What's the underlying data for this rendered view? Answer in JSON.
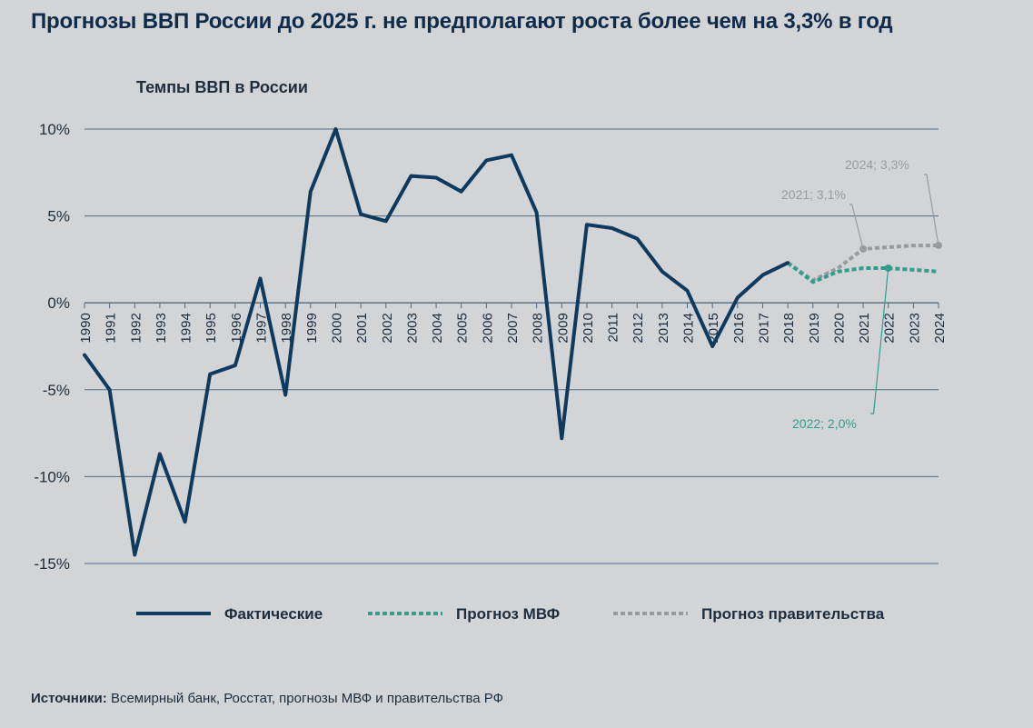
{
  "title": "Прогнозы ВВП России до 2025 г. не предполагают роста более чем на 3,3% в год",
  "source_label": "Источники:",
  "source_text": "Всемирный банк, Росстат, прогнозы МВФ и правительства РФ",
  "colors": {
    "actual": "#0e3a5f",
    "imf": "#2f9e8f",
    "gov": "#9a9b9d",
    "grid": "#4f6a86"
  },
  "chart_data": {
    "type": "line",
    "title": "Темпы ВВП в России",
    "xlabel": "",
    "ylabel": "",
    "ylim": [
      -15,
      10
    ],
    "yticks": [
      10,
      5,
      0,
      -5,
      -10,
      -15
    ],
    "ytick_labels": [
      "10%",
      "5%",
      "0%",
      "-5%",
      "-10%",
      "-15%"
    ],
    "x": [
      1990,
      1991,
      1992,
      1993,
      1994,
      1995,
      1996,
      1997,
      1998,
      1999,
      2000,
      2001,
      2002,
      2003,
      2004,
      2005,
      2006,
      2007,
      2008,
      2009,
      2010,
      2011,
      2012,
      2013,
      2014,
      2015,
      2016,
      2017,
      2018,
      2019,
      2020,
      2021,
      2022,
      2023,
      2024
    ],
    "series": [
      {
        "name": "Фактические",
        "key": "actual",
        "x": [
          1990,
          1991,
          1992,
          1993,
          1994,
          1995,
          1996,
          1997,
          1998,
          1999,
          2000,
          2001,
          2002,
          2003,
          2004,
          2005,
          2006,
          2007,
          2008,
          2009,
          2010,
          2011,
          2012,
          2013,
          2014,
          2015,
          2016,
          2017,
          2018
        ],
        "values": [
          -3.0,
          -5.0,
          -14.5,
          -8.7,
          -12.6,
          -4.1,
          -3.6,
          1.4,
          -5.3,
          6.4,
          10.0,
          5.1,
          4.7,
          7.3,
          7.2,
          6.4,
          8.2,
          8.5,
          5.2,
          -7.8,
          4.5,
          4.3,
          3.7,
          1.8,
          0.7,
          -2.5,
          0.3,
          1.6,
          2.3
        ]
      },
      {
        "name": "Прогноз МВФ",
        "key": "imf",
        "x": [
          2018,
          2019,
          2020,
          2021,
          2022,
          2023,
          2024
        ],
        "values": [
          2.3,
          1.2,
          1.8,
          2.0,
          2.0,
          1.9,
          1.8
        ]
      },
      {
        "name": "Прогноз правительства",
        "key": "gov",
        "x": [
          2018,
          2019,
          2020,
          2021,
          2022,
          2023,
          2024
        ],
        "values": [
          2.3,
          1.3,
          2.0,
          3.1,
          3.2,
          3.3,
          3.3
        ]
      }
    ],
    "annotations": [
      {
        "text": "2021; 3,1%",
        "series": "gov",
        "x": 2021,
        "y": 3.1
      },
      {
        "text": "2024; 3,3%",
        "series": "gov",
        "x": 2024,
        "y": 3.3
      },
      {
        "text": "2022; 2,0%",
        "series": "imf",
        "x": 2022,
        "y": 2.0
      }
    ],
    "legend": [
      {
        "label": "Фактические",
        "key": "actual"
      },
      {
        "label": "Прогноз МВФ",
        "key": "imf"
      },
      {
        "label": "Прогноз правительства",
        "key": "gov"
      }
    ]
  }
}
